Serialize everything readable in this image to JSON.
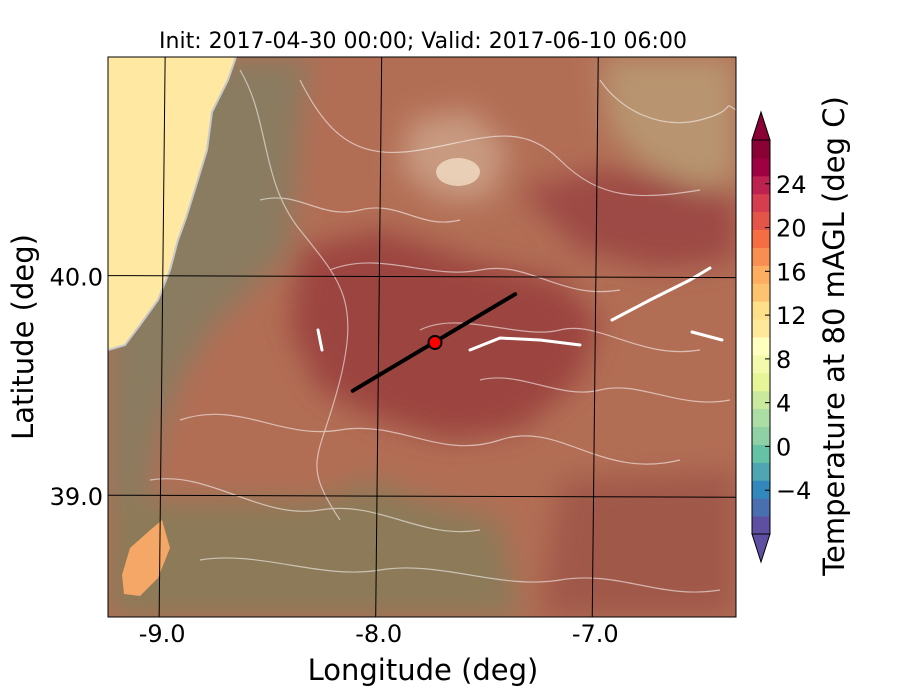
{
  "figure": {
    "title": "Init: 2017-04-30 00:00; Valid: 2017-06-10 06:00",
    "xlabel": "Longitude (deg)",
    "ylabel": "Latitude (deg)",
    "x_ticks": [
      {
        "value": -9.0,
        "label": "-9.0"
      },
      {
        "value": -8.0,
        "label": "-8.0"
      },
      {
        "value": -7.0,
        "label": "-7.0"
      }
    ],
    "y_ticks": [
      {
        "value": 40.0,
        "label": "40.0"
      },
      {
        "value": 39.0,
        "label": "39.0"
      }
    ],
    "xlim": [
      -9.25,
      -6.35
    ],
    "ylim": [
      38.45,
      41.0
    ],
    "cross_section": {
      "start": {
        "lon": -8.12,
        "lat": 39.48
      },
      "end": {
        "lon": -7.37,
        "lat": 39.92
      },
      "color": "#000000"
    },
    "marker": {
      "lon": -7.74,
      "lat": 39.7,
      "color": "#ff0000"
    }
  },
  "colorbar": {
    "label": "Temperature at 80 mAGL (deg C)",
    "min": -8,
    "max": 28,
    "ticks": [
      {
        "value": -4,
        "label": "−4"
      },
      {
        "value": 0,
        "label": "0"
      },
      {
        "value": 4,
        "label": "4"
      },
      {
        "value": 8,
        "label": "8"
      },
      {
        "value": 12,
        "label": "12"
      },
      {
        "value": 16,
        "label": "16"
      },
      {
        "value": 20,
        "label": "20"
      },
      {
        "value": 24,
        "label": "24"
      }
    ],
    "colors": [
      "#5e4fa2",
      "#4a6fb0",
      "#3288bd",
      "#4fa6b2",
      "#66c2a5",
      "#8fd1a4",
      "#abdda4",
      "#c9e99f",
      "#e6f598",
      "#f3faab",
      "#ffffbf",
      "#fee99a",
      "#fee08b",
      "#fdc371",
      "#fdae61",
      "#f98e52",
      "#f46d43",
      "#e45549",
      "#d53e4f",
      "#bd2150",
      "#9e0142",
      "#8a0136"
    ]
  },
  "chart_data": {
    "type": "heatmap",
    "title": "Init: 2017-04-30 00:00; Valid: 2017-06-10 06:00",
    "xlabel": "Longitude (deg)",
    "ylabel": "Latitude (deg)",
    "xlim": [
      -9.25,
      -6.35
    ],
    "ylim": [
      38.45,
      41.0
    ],
    "colorbar_label": "Temperature at 80 mAGL (deg C)",
    "colorbar_range": [
      -8,
      28
    ],
    "colorbar_ticks": [
      -4,
      0,
      4,
      8,
      12,
      16,
      20,
      24
    ],
    "grid": true
  }
}
